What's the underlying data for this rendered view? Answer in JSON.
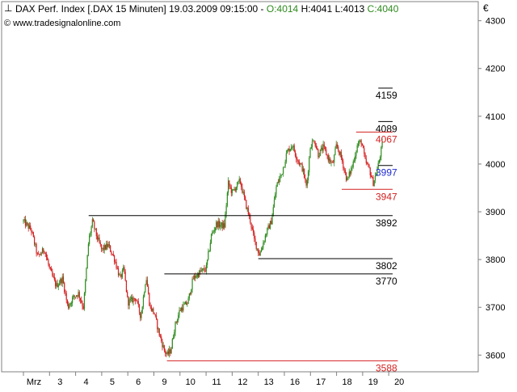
{
  "header": {
    "icon": "candlestick-icon",
    "title_text": "DAX Perf. Index [.DAX  15 Minuten] 19.03.2009 09:15:00 - ",
    "open": "O:4014",
    "high": "H:4041",
    "low": "L:4013",
    "close": "C:4040",
    "copyright": "© www.tradesignalonline.com",
    "currency": "€"
  },
  "colors": {
    "background": "#ffffff",
    "axis_border": "#808080",
    "up_candle": "#2e8b1e",
    "down_candle": "#d42020",
    "level_black": "#000000",
    "level_red": "#d42020",
    "label_blue": "#1f2bd1",
    "open_text": "#2e8b1e",
    "close_text": "#2e8b1e"
  },
  "chart_data": {
    "type": "candlestick",
    "instrument": "DAX Perf. Index",
    "interval": "15 Minuten",
    "ylim": [
      3565,
      4340
    ],
    "y_ticks": [
      3600,
      3700,
      3800,
      3900,
      4000,
      4100,
      4200,
      4300
    ],
    "y_tick_labels": [
      "3600",
      "3700",
      "3800",
      "3900",
      "4000",
      "4100",
      "4200",
      "4300"
    ],
    "x_day_labels": [
      "Mrz",
      "3",
      "4",
      "5",
      "6",
      "9",
      "10",
      "11",
      "12",
      "13",
      "16",
      "17",
      "18",
      "19",
      "20"
    ],
    "grid": false,
    "levels": [
      {
        "label": "4159",
        "value": 4159,
        "color": "black",
        "from_day": 13.6,
        "to_day": 14.15
      },
      {
        "label": "4089",
        "value": 4089,
        "color": "black",
        "from_day": 13.6,
        "to_day": 14.15
      },
      {
        "label": "4067",
        "value": 4067,
        "color": "red",
        "from_day": 12.75,
        "to_day": 14.15
      },
      {
        "label": "3997",
        "value": 3997,
        "color": "blue",
        "from_day": 13.6,
        "to_day": 14.15
      },
      {
        "label": "3947",
        "value": 3947,
        "color": "red",
        "from_day": 12.2,
        "to_day": 14.15
      },
      {
        "label": "3892",
        "value": 3892,
        "color": "black",
        "from_day": 2.5,
        "to_day": 14.15
      },
      {
        "label": "3802",
        "value": 3802,
        "color": "black",
        "from_day": 9.0,
        "to_day": 14.15
      },
      {
        "label": "3770",
        "value": 3770,
        "color": "black",
        "from_day": 5.4,
        "to_day": 14.15
      },
      {
        "label": "3588",
        "value": 3588,
        "color": "red",
        "from_day": 5.5,
        "to_day": 14.35
      }
    ],
    "anchors": [
      [
        0.0,
        3880
      ],
      [
        0.3,
        3862
      ],
      [
        0.55,
        3805
      ],
      [
        0.8,
        3822
      ],
      [
        1.0,
        3780
      ],
      [
        1.25,
        3745
      ],
      [
        1.5,
        3760
      ],
      [
        1.7,
        3700
      ],
      [
        1.9,
        3720
      ],
      [
        2.1,
        3730
      ],
      [
        2.3,
        3700
      ],
      [
        2.5,
        3840
      ],
      [
        2.65,
        3880
      ],
      [
        2.8,
        3850
      ],
      [
        3.0,
        3820
      ],
      [
        3.25,
        3830
      ],
      [
        3.5,
        3800
      ],
      [
        3.7,
        3760
      ],
      [
        3.85,
        3780
      ],
      [
        4.0,
        3710
      ],
      [
        4.3,
        3720
      ],
      [
        4.5,
        3680
      ],
      [
        4.7,
        3765
      ],
      [
        4.85,
        3700
      ],
      [
        5.0,
        3690
      ],
      [
        5.2,
        3645
      ],
      [
        5.4,
        3610
      ],
      [
        5.5,
        3600
      ],
      [
        5.65,
        3610
      ],
      [
        5.8,
        3660
      ],
      [
        6.0,
        3695
      ],
      [
        6.3,
        3710
      ],
      [
        6.5,
        3760
      ],
      [
        6.8,
        3775
      ],
      [
        7.0,
        3780
      ],
      [
        7.2,
        3850
      ],
      [
        7.4,
        3875
      ],
      [
        7.7,
        3870
      ],
      [
        7.85,
        3960
      ],
      [
        8.0,
        3940
      ],
      [
        8.3,
        3965
      ],
      [
        8.5,
        3920
      ],
      [
        8.7,
        3880
      ],
      [
        8.85,
        3840
      ],
      [
        9.05,
        3810
      ],
      [
        9.3,
        3855
      ],
      [
        9.5,
        3880
      ],
      [
        9.7,
        3955
      ],
      [
        9.9,
        3980
      ],
      [
        10.1,
        4025
      ],
      [
        10.3,
        4040
      ],
      [
        10.5,
        4010
      ],
      [
        10.7,
        3990
      ],
      [
        10.85,
        3950
      ],
      [
        11.0,
        4040
      ],
      [
        11.15,
        4050
      ],
      [
        11.3,
        4020
      ],
      [
        11.5,
        4035
      ],
      [
        11.7,
        4010
      ],
      [
        11.85,
        3998
      ],
      [
        12.0,
        4040
      ],
      [
        12.2,
        4010
      ],
      [
        12.4,
        3965
      ],
      [
        12.6,
        3995
      ],
      [
        12.8,
        4040
      ],
      [
        12.95,
        4048
      ],
      [
        13.1,
        4005
      ],
      [
        13.25,
        3990
      ],
      [
        13.4,
        3960
      ],
      [
        13.55,
        3985
      ],
      [
        13.75,
        4040
      ]
    ],
    "n_bars": 360
  }
}
